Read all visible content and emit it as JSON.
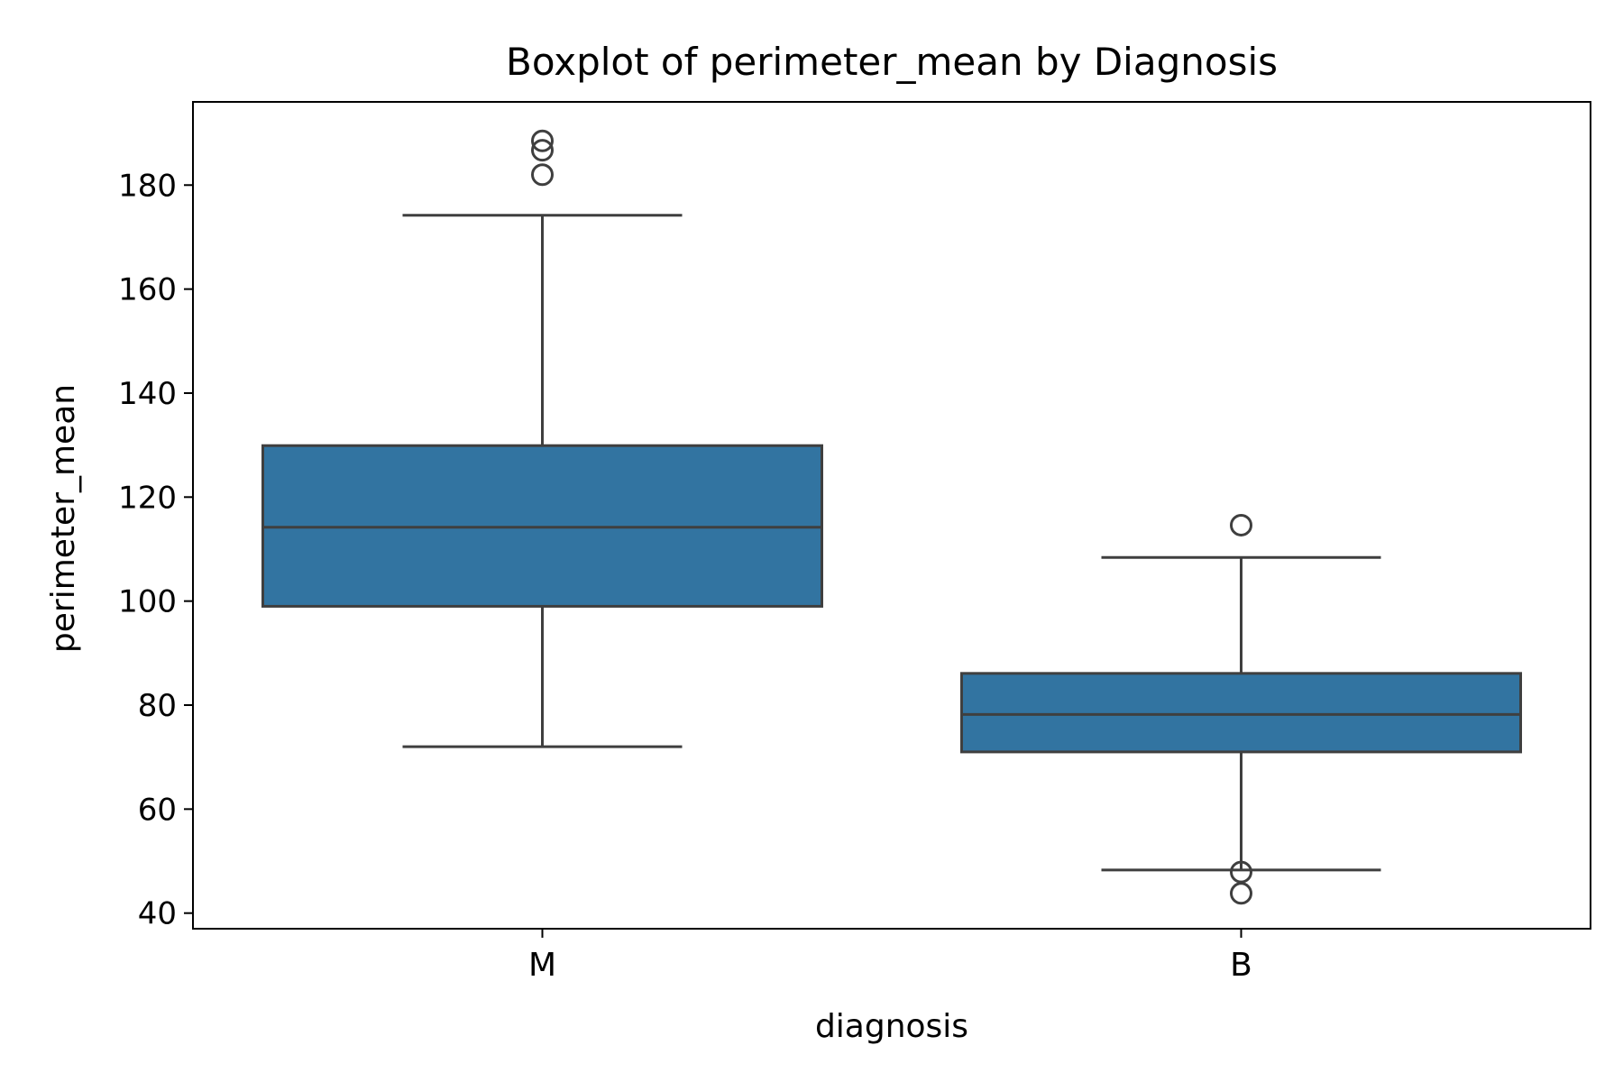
{
  "chart_data": {
    "type": "box",
    "title": "Boxplot of perimeter_mean by Diagnosis",
    "xlabel": "diagnosis",
    "ylabel": "perimeter_mean",
    "ylim": [
      37,
      196
    ],
    "yticks": [
      40,
      60,
      80,
      100,
      120,
      140,
      160,
      180
    ],
    "grid": false,
    "box_color": "#3274a1",
    "line_color": "#3f3f3f",
    "categories": [
      "M",
      "B"
    ],
    "boxes": [
      {
        "category": "M",
        "whisker_low": 72,
        "q1": 99,
        "median": 114.2,
        "q3": 129.9,
        "whisker_high": 174.2,
        "outliers": [
          182,
          186.7,
          188.5
        ]
      },
      {
        "category": "B",
        "whisker_low": 48.3,
        "q1": 71,
        "median": 78.2,
        "q3": 86.1,
        "whisker_high": 108.4,
        "outliers": [
          114.6,
          47.9,
          43.8
        ]
      }
    ]
  }
}
